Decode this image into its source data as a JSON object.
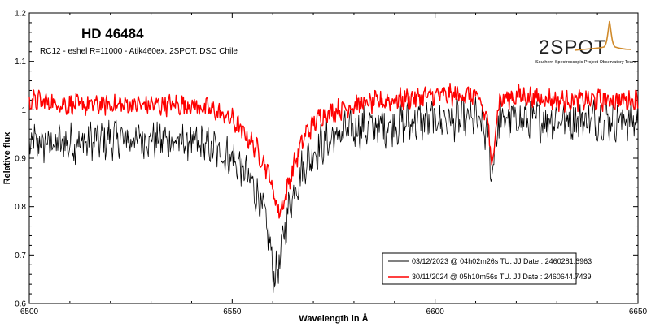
{
  "chart_data": {
    "type": "line",
    "title": "HD 46484",
    "subtitle": "RC12 - eshel R=11000 - Atik460ex. 2SPOT. DSC Chile",
    "xlabel": "Wavelength in Å",
    "ylabel": "Relative flux",
    "xlim": [
      6500,
      6650
    ],
    "ylim": [
      0.6,
      1.2
    ],
    "x_ticks": [
      "6500",
      "6550",
      "6600",
      "6650"
    ],
    "y_ticks": [
      "0.6",
      "0.7",
      "0.8",
      "0.9",
      "1",
      "1.1",
      "1.2"
    ],
    "grid": false,
    "legend_position": "bottom-right",
    "series": [
      {
        "name": "03/12/2023 @ 04h02m26s TU.  JJ Date : 2460281.6963",
        "color": "#000000",
        "x": [
          6500,
          6510,
          6520,
          6530,
          6540,
          6545,
          6550,
          6554,
          6557,
          6559,
          6560,
          6561,
          6562,
          6563,
          6565,
          6568,
          6572,
          6580,
          6590,
          6600,
          6610,
          6613,
          6614,
          6615,
          6616,
          6620,
          6630,
          6640,
          6650
        ],
        "values": [
          0.93,
          0.93,
          0.94,
          0.94,
          0.93,
          0.92,
          0.9,
          0.86,
          0.81,
          0.74,
          0.67,
          0.66,
          0.7,
          0.76,
          0.83,
          0.89,
          0.93,
          0.96,
          0.97,
          0.98,
          0.98,
          0.95,
          0.86,
          0.95,
          0.98,
          0.98,
          0.98,
          0.98,
          0.98
        ]
      },
      {
        "name": "30/11/2024 @ 05h10m56s TU.  JJ Date : 2460644.7439",
        "color": "#ff0000",
        "x": [
          6500,
          6510,
          6520,
          6530,
          6540,
          6545,
          6550,
          6553,
          6556,
          6559,
          6561,
          6562,
          6563,
          6565,
          6568,
          6572,
          6580,
          6590,
          6600,
          6610,
          6613,
          6614,
          6615,
          6616,
          6620,
          6630,
          6640,
          6650
        ],
        "values": [
          1.02,
          1.01,
          1.01,
          1.01,
          1.01,
          1.0,
          0.98,
          0.95,
          0.92,
          0.87,
          0.8,
          0.79,
          0.82,
          0.88,
          0.95,
          0.99,
          1.01,
          1.02,
          1.03,
          1.03,
          0.98,
          0.87,
          0.98,
          1.02,
          1.03,
          1.02,
          1.02,
          1.02
        ]
      }
    ]
  },
  "logo": {
    "text": "2SPOT",
    "tagline": "Southern Spectroscopic Project Observatory Team"
  }
}
